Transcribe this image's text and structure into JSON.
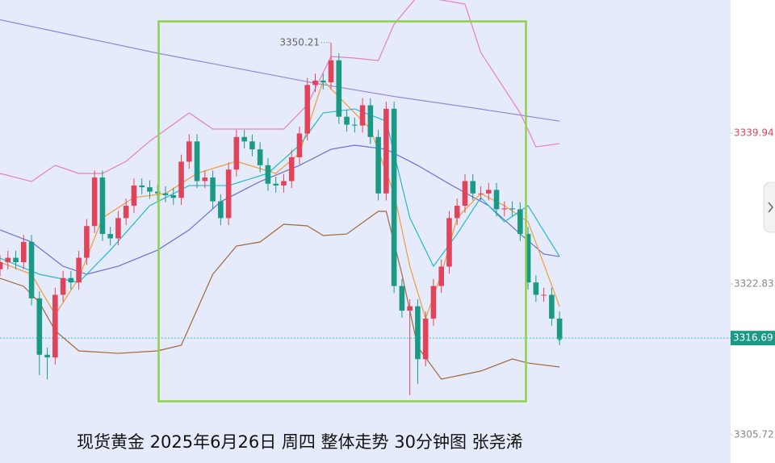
{
  "chart_data": {
    "type": "candlestick",
    "title": "现货黄金 2025年6月26日 周四 整体走势 30分钟图 张尧浠",
    "annotation": "3350.21",
    "annotation_index": 42,
    "up_color": "#e0445a",
    "down_color": "#1a9a85",
    "ylim": [
      3302.52,
      3355.04
    ],
    "yticks": [
      3305.72,
      3322.83,
      3339.94
    ],
    "ytick_colors": [
      "#888888",
      "#888888",
      "#e0445a"
    ],
    "current_price": 3316.69,
    "current_price_color": "#1a9a85",
    "xlim": [
      0,
      92.7
    ],
    "open": [
      3324.5,
      3325.3,
      3325.8,
      3325.3,
      3327.6,
      3321.2,
      3314.8,
      3314.5,
      3321.6,
      3323.5,
      3323.0,
      3325.8,
      3329.4,
      3334.9,
      3328.5,
      3328.0,
      3330.3,
      3331.7,
      3334.0,
      3333.8,
      3333.3,
      3333.1,
      3332.9,
      3332.6,
      3336.7,
      3339.0,
      3334.5,
      3334.9,
      3332.2,
      3330.3,
      3335.8,
      3339.5,
      3339.0,
      3338.1,
      3336.3,
      3334.2,
      3334.0,
      3334.5,
      3337.2,
      3339.9,
      3345.4,
      3345.9,
      3345.7,
      3348.2,
      3341.8,
      3340.9,
      3340.8,
      3343.1,
      3339.5,
      3333.1,
      3342.7,
      3322.6,
      3319.8,
      3320.3,
      3314.3,
      3318.9,
      3322.6,
      3324.8,
      3330.3,
      3331.7,
      3334.5,
      3333.1,
      3333.1,
      3333.5,
      3331.3,
      3331.4,
      3331.3,
      3328.5,
      3323.0,
      3321.6,
      3321.6,
      3318.9
    ],
    "high": [
      3326.1,
      3326.6,
      3326.6,
      3328.4,
      3328.4,
      3322.0,
      3315.6,
      3322.4,
      3324.3,
      3324.3,
      3326.6,
      3330.2,
      3335.7,
      3335.7,
      3329.3,
      3331.1,
      3332.5,
      3334.8,
      3334.8,
      3334.6,
      3334.1,
      3333.9,
      3333.7,
      3337.5,
      3339.8,
      3339.8,
      3335.7,
      3335.7,
      3333.0,
      3336.6,
      3340.3,
      3340.3,
      3339.8,
      3338.9,
      3337.1,
      3335.0,
      3335.3,
      3338.0,
      3340.7,
      3346.2,
      3346.7,
      3346.7,
      3350.21,
      3349.0,
      3342.6,
      3341.7,
      3343.9,
      3343.9,
      3340.3,
      3343.5,
      3343.5,
      3323.4,
      3321.1,
      3321.1,
      3319.7,
      3323.4,
      3325.6,
      3331.1,
      3332.5,
      3335.3,
      3335.3,
      3333.9,
      3334.3,
      3334.3,
      3332.2,
      3332.2,
      3332.1,
      3329.3,
      3323.8,
      3322.4,
      3322.4,
      3319.7
    ],
    "low": [
      3323.7,
      3324.5,
      3324.5,
      3324.5,
      3320.4,
      3312.5,
      3312.0,
      3313.7,
      3320.8,
      3322.2,
      3322.2,
      3325.0,
      3328.6,
      3327.7,
      3327.2,
      3327.2,
      3329.5,
      3330.9,
      3333.0,
      3332.5,
      3332.3,
      3332.1,
      3331.8,
      3331.8,
      3335.9,
      3333.7,
      3333.7,
      3331.4,
      3329.5,
      3329.5,
      3335.0,
      3338.2,
      3337.3,
      3335.5,
      3333.4,
      3333.2,
      3333.2,
      3333.7,
      3336.4,
      3339.1,
      3344.6,
      3344.9,
      3344.9,
      3341.0,
      3340.1,
      3340.0,
      3340.0,
      3338.7,
      3332.3,
      3332.3,
      3321.8,
      3319.0,
      3310.2,
      3311.5,
      3313.5,
      3318.1,
      3321.8,
      3324.0,
      3329.5,
      3330.9,
      3332.3,
      3332.3,
      3332.3,
      3330.5,
      3330.5,
      3330.5,
      3327.7,
      3322.2,
      3320.8,
      3320.8,
      3318.1,
      3315.9
    ],
    "close": [
      3325.3,
      3325.8,
      3325.3,
      3327.6,
      3321.2,
      3314.8,
      3314.5,
      3321.6,
      3323.5,
      3323.0,
      3325.8,
      3329.4,
      3334.9,
      3328.5,
      3328.0,
      3330.3,
      3331.7,
      3334.0,
      3333.8,
      3333.3,
      3333.1,
      3332.9,
      3332.6,
      3336.7,
      3339.0,
      3334.5,
      3334.9,
      3332.2,
      3330.3,
      3335.8,
      3339.5,
      3339.0,
      3338.1,
      3336.3,
      3334.2,
      3334.0,
      3334.5,
      3337.2,
      3339.9,
      3345.4,
      3345.9,
      3345.7,
      3348.2,
      3341.8,
      3340.9,
      3340.8,
      3343.1,
      3339.5,
      3333.1,
      3342.7,
      3322.6,
      3319.8,
      3320.3,
      3314.3,
      3318.9,
      3322.6,
      3324.8,
      3330.3,
      3331.7,
      3334.5,
      3333.1,
      3333.1,
      3333.5,
      3331.3,
      3331.4,
      3331.3,
      3328.5,
      3323.0,
      3321.6,
      3321.6,
      3318.9,
      3316.69
    ],
    "lines": [
      {
        "color": "#8f86dc",
        "x": [
          0,
          10,
          20,
          30,
          40,
          50,
          60,
          71
        ],
        "values": [
          3352.8,
          3350.9,
          3349.0,
          3347.3,
          3345.6,
          3344.1,
          3342.8,
          3341.3
        ]
      },
      {
        "color": "#e47fc2",
        "x": [
          0,
          4,
          7,
          10,
          13,
          16,
          19,
          24,
          27,
          31,
          36,
          39,
          42,
          45,
          48,
          50,
          53,
          59,
          61,
          66,
          68,
          71
        ],
        "values": [
          3335.37,
          3334.45,
          3336.28,
          3335.37,
          3335.37,
          3336.74,
          3339.03,
          3342.23,
          3340.4,
          3340.4,
          3340.4,
          3343.14,
          3348.63,
          3348.45,
          3348.17,
          3352.29,
          3355.5,
          3354.58,
          3349.09,
          3342.23,
          3338.38,
          3338.75
        ]
      },
      {
        "color": "#a0673a",
        "x": [
          0,
          3,
          5,
          7,
          10,
          15,
          20,
          23,
          27,
          30,
          33,
          36,
          39,
          41,
          44,
          48,
          49,
          51,
          53,
          56,
          61,
          65,
          67,
          71
        ],
        "values": [
          3323.47,
          3322.56,
          3320.73,
          3317.53,
          3315.24,
          3314.96,
          3315.24,
          3315.88,
          3323.93,
          3327.13,
          3327.59,
          3329.6,
          3329.42,
          3328.32,
          3328.5,
          3331.07,
          3331.07,
          3323.93,
          3315.7,
          3312.04,
          3312.95,
          3314.32,
          3313.86,
          3313.41
        ]
      },
      {
        "color": "#6a6fd6",
        "x": [
          0,
          4,
          8,
          11,
          15,
          20,
          24,
          28,
          33,
          38,
          42,
          45,
          49,
          53,
          57,
          62,
          66,
          69,
          71
        ],
        "values": [
          3328.96,
          3327.59,
          3324.84,
          3323.93,
          3324.84,
          3326.67,
          3328.96,
          3332.16,
          3334.45,
          3336.28,
          3338.11,
          3338.57,
          3338.11,
          3336.28,
          3334.18,
          3331.71,
          3328.5,
          3326.22,
          3325.94
        ]
      },
      {
        "color": "#f39a3a",
        "x": [
          0,
          4,
          7,
          10,
          13,
          17,
          21,
          25,
          30,
          35,
          38,
          41,
          44,
          47,
          50,
          52,
          54,
          56,
          58,
          61,
          64,
          67,
          71
        ],
        "values": [
          3325.3,
          3323.93,
          3319.35,
          3323.47,
          3330.33,
          3332.63,
          3333.08,
          3335.37,
          3336.74,
          3335.37,
          3337.65,
          3345.89,
          3343.14,
          3340.4,
          3333.08,
          3324.84,
          3318.9,
          3323.93,
          3330.33,
          3333.08,
          3331.71,
          3329.88,
          3320.27
        ]
      },
      {
        "color": "#22b8cf",
        "x": [
          0,
          5,
          10,
          14,
          19,
          24,
          29,
          34,
          38,
          41,
          45,
          49,
          52,
          55,
          58,
          61,
          64,
          67,
          71
        ],
        "values": [
          3325.76,
          3323.93,
          3323.01,
          3326.67,
          3331.71,
          3333.99,
          3333.99,
          3335.37,
          3338.57,
          3342.23,
          3342.68,
          3341.31,
          3330.33,
          3324.84,
          3328.5,
          3332.63,
          3329.88,
          3331.71,
          3325.94
        ]
      }
    ]
  }
}
